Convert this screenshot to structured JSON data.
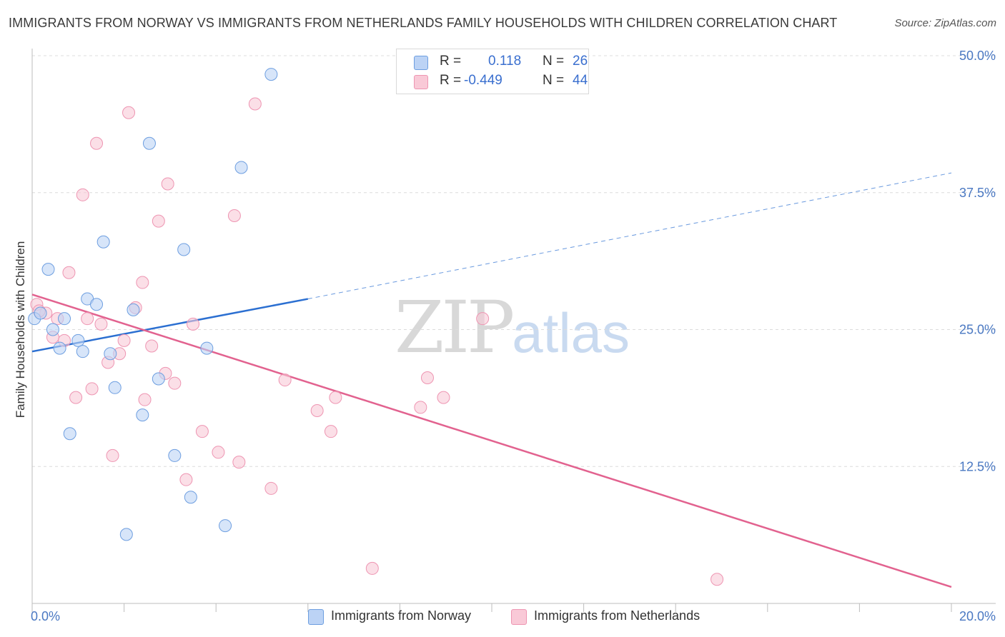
{
  "title": "IMMIGRANTS FROM NORWAY VS IMMIGRANTS FROM NETHERLANDS FAMILY HOUSEHOLDS WITH CHILDREN CORRELATION CHART",
  "source": "Source: ZipAtlas.com",
  "watermark": {
    "zip": "ZIP",
    "atlas": "atlas"
  },
  "legend": {
    "r_label": "R =",
    "n_label": "N =",
    "norway": {
      "r": "0.118",
      "n": "26"
    },
    "netherlands": {
      "r": "-0.449",
      "n": "44"
    }
  },
  "colors": {
    "norway_fill": "#bcd3f5",
    "norway_stroke": "#6d9ee0",
    "norway_line": "#2b6fd1",
    "netherlands_fill": "#f9c9d7",
    "netherlands_stroke": "#ee95b2",
    "netherlands_line": "#e2628f"
  },
  "chart_data": {
    "type": "scatter",
    "title": "IMMIGRANTS FROM NORWAY VS IMMIGRANTS FROM NETHERLANDS FAMILY HOUSEHOLDS WITH CHILDREN CORRELATION CHART",
    "xlabel": "",
    "ylabel": "Family Households with Children",
    "xlim": [
      0,
      20
    ],
    "ylim": [
      0,
      50
    ],
    "x_tick_labels": [
      "0.0%",
      "20.0%"
    ],
    "y_ticks": [
      12.5,
      25.0,
      37.5,
      50.0
    ],
    "y_tick_labels": [
      "12.5%",
      "25.0%",
      "37.5%",
      "50.0%"
    ],
    "grid": true,
    "legend_position": "bottom",
    "series": [
      {
        "name": "Immigrants from Norway",
        "points": [
          [
            0.05,
            26.0
          ],
          [
            0.18,
            26.5
          ],
          [
            0.35,
            30.5
          ],
          [
            0.45,
            25.0
          ],
          [
            0.6,
            23.3
          ],
          [
            0.7,
            26.0
          ],
          [
            0.82,
            15.5
          ],
          [
            1.0,
            24.0
          ],
          [
            1.1,
            23.0
          ],
          [
            1.2,
            27.8
          ],
          [
            1.4,
            27.3
          ],
          [
            1.55,
            33.0
          ],
          [
            1.7,
            22.8
          ],
          [
            1.8,
            19.7
          ],
          [
            2.05,
            6.3
          ],
          [
            2.2,
            26.8
          ],
          [
            2.4,
            17.2
          ],
          [
            2.55,
            42.0
          ],
          [
            2.75,
            20.5
          ],
          [
            3.1,
            13.5
          ],
          [
            3.3,
            32.3
          ],
          [
            3.45,
            9.7
          ],
          [
            3.8,
            23.3
          ],
          [
            4.2,
            7.1
          ],
          [
            4.55,
            39.8
          ],
          [
            5.2,
            48.3
          ]
        ],
        "trend": {
          "x": [
            0,
            6
          ],
          "y": [
            23.0,
            27.8
          ],
          "extended_to": [
            20,
            39.3
          ]
        }
      },
      {
        "name": "Immigrants from Netherlands",
        "points": [
          [
            0.1,
            27.3
          ],
          [
            0.3,
            26.5
          ],
          [
            0.45,
            24.3
          ],
          [
            0.55,
            26.0
          ],
          [
            0.7,
            24.0
          ],
          [
            0.8,
            30.2
          ],
          [
            0.95,
            18.8
          ],
          [
            1.1,
            37.3
          ],
          [
            1.2,
            26.0
          ],
          [
            1.3,
            19.6
          ],
          [
            1.4,
            42.0
          ],
          [
            1.5,
            25.5
          ],
          [
            1.65,
            22.0
          ],
          [
            1.75,
            13.5
          ],
          [
            1.9,
            22.8
          ],
          [
            2.0,
            24.0
          ],
          [
            2.1,
            44.8
          ],
          [
            2.25,
            27.0
          ],
          [
            2.4,
            29.3
          ],
          [
            2.45,
            18.6
          ],
          [
            2.6,
            23.5
          ],
          [
            2.75,
            34.9
          ],
          [
            2.9,
            21.0
          ],
          [
            2.95,
            38.3
          ],
          [
            3.1,
            20.1
          ],
          [
            3.35,
            11.3
          ],
          [
            3.5,
            25.5
          ],
          [
            3.7,
            15.7
          ],
          [
            4.05,
            13.8
          ],
          [
            4.4,
            35.4
          ],
          [
            4.5,
            12.9
          ],
          [
            4.85,
            45.6
          ],
          [
            5.2,
            10.5
          ],
          [
            5.5,
            20.4
          ],
          [
            6.2,
            17.6
          ],
          [
            6.5,
            15.7
          ],
          [
            6.6,
            18.8
          ],
          [
            7.4,
            3.2
          ],
          [
            8.45,
            17.9
          ],
          [
            8.6,
            20.6
          ],
          [
            8.95,
            18.8
          ],
          [
            9.8,
            26.0
          ],
          [
            14.9,
            2.2
          ],
          [
            0.15,
            26.7
          ]
        ],
        "trend": {
          "x": [
            0,
            20
          ],
          "y": [
            28.2,
            1.5
          ]
        }
      }
    ]
  }
}
